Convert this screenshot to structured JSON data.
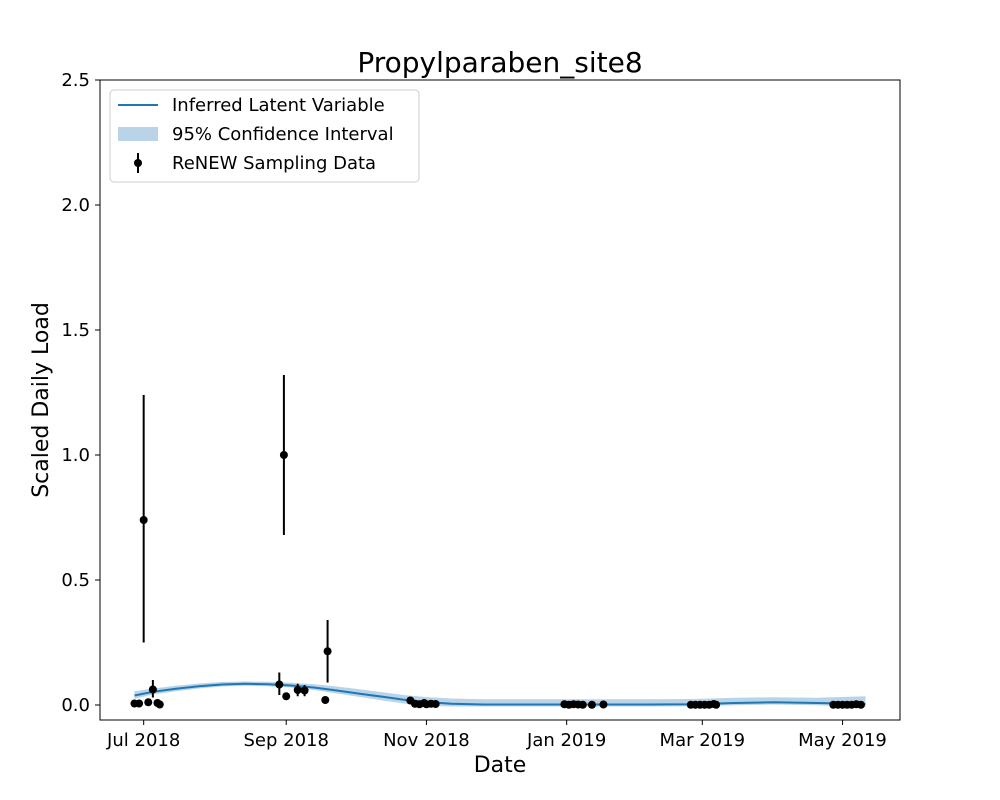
{
  "chart_data": {
    "type": "line",
    "title": "Propylparaben_site8",
    "xlabel": "Date",
    "ylabel": "Scaled Daily Load",
    "xlim": [
      "2018-06-12",
      "2019-05-26"
    ],
    "ylim": [
      -0.06,
      2.5
    ],
    "x_ticks": [
      {
        "date": "2018-07-01",
        "label": "Jul 2018"
      },
      {
        "date": "2018-09-01",
        "label": "Sep 2018"
      },
      {
        "date": "2018-11-01",
        "label": "Nov 2018"
      },
      {
        "date": "2019-01-01",
        "label": "Jan 2019"
      },
      {
        "date": "2019-03-01",
        "label": "Mar 2019"
      },
      {
        "date": "2019-05-01",
        "label": "May 2019"
      }
    ],
    "y_ticks": [
      {
        "value": 0.0,
        "label": "0.0"
      },
      {
        "value": 0.5,
        "label": "0.5"
      },
      {
        "value": 1.0,
        "label": "1.0"
      },
      {
        "value": 1.5,
        "label": "1.5"
      },
      {
        "value": 2.0,
        "label": "2.0"
      },
      {
        "value": 2.5,
        "label": "2.5"
      }
    ],
    "grid": false,
    "legend_position": "top-left",
    "colors": {
      "line": "#1f77b4",
      "band": "#b9d3e8",
      "points": "#000000"
    },
    "series": [
      {
        "name": "Inferred Latent Variable",
        "kind": "line",
        "points": [
          {
            "x": "2018-06-27",
            "y": 0.038
          },
          {
            "x": "2018-07-05",
            "y": 0.053
          },
          {
            "x": "2018-07-15",
            "y": 0.065
          },
          {
            "x": "2018-07-25",
            "y": 0.075
          },
          {
            "x": "2018-08-04",
            "y": 0.082
          },
          {
            "x": "2018-08-14",
            "y": 0.085
          },
          {
            "x": "2018-08-24",
            "y": 0.083
          },
          {
            "x": "2018-09-03",
            "y": 0.078
          },
          {
            "x": "2018-09-13",
            "y": 0.07
          },
          {
            "x": "2018-09-23",
            "y": 0.058
          },
          {
            "x": "2018-10-03",
            "y": 0.045
          },
          {
            "x": "2018-10-13",
            "y": 0.033
          },
          {
            "x": "2018-10-23",
            "y": 0.02
          },
          {
            "x": "2018-11-02",
            "y": 0.011
          },
          {
            "x": "2018-11-12",
            "y": 0.005
          },
          {
            "x": "2018-11-26",
            "y": 0.002
          },
          {
            "x": "2018-12-15",
            "y": 0.002
          },
          {
            "x": "2019-01-10",
            "y": 0.002
          },
          {
            "x": "2019-02-05",
            "y": 0.002
          },
          {
            "x": "2019-02-25",
            "y": 0.003
          },
          {
            "x": "2019-03-15",
            "y": 0.008
          },
          {
            "x": "2019-04-01",
            "y": 0.011
          },
          {
            "x": "2019-04-20",
            "y": 0.008
          },
          {
            "x": "2019-05-11",
            "y": 0.004
          }
        ]
      },
      {
        "name": "95% Confidence Interval",
        "kind": "band",
        "lower": [
          0.025,
          0.042,
          0.055,
          0.066,
          0.074,
          0.077,
          0.075,
          0.07,
          0.06,
          0.046,
          0.032,
          0.018,
          0.005,
          -0.003,
          -0.006,
          -0.006,
          -0.006,
          -0.006,
          -0.006,
          -0.005,
          -0.001,
          0.002,
          -0.001,
          -0.008
        ],
        "upper": [
          0.055,
          0.066,
          0.077,
          0.086,
          0.092,
          0.094,
          0.093,
          0.089,
          0.083,
          0.074,
          0.063,
          0.051,
          0.039,
          0.031,
          0.026,
          0.023,
          0.023,
          0.023,
          0.023,
          0.024,
          0.029,
          0.031,
          0.029,
          0.035
        ]
      },
      {
        "name": "ReNEW Sampling Data",
        "kind": "errorbar",
        "points": [
          {
            "x": "2018-06-27",
            "y": 0.006
          },
          {
            "x": "2018-06-29",
            "y": 0.006
          },
          {
            "x": "2018-07-01",
            "y": 0.74,
            "err": [
              0.25,
              1.24
            ]
          },
          {
            "x": "2018-07-03",
            "y": 0.011
          },
          {
            "x": "2018-07-05",
            "y": 0.062,
            "err": [
              0.03,
              0.1
            ]
          },
          {
            "x": "2018-07-07",
            "y": 0.008
          },
          {
            "x": "2018-07-08",
            "y": 0.002
          },
          {
            "x": "2018-08-29",
            "y": 0.082,
            "err": [
              0.04,
              0.13
            ]
          },
          {
            "x": "2018-08-31",
            "y": 1.0,
            "err": [
              0.68,
              1.32
            ]
          },
          {
            "x": "2018-09-01",
            "y": 0.035
          },
          {
            "x": "2018-09-06",
            "y": 0.06,
            "err": [
              0.035,
              0.085
            ]
          },
          {
            "x": "2018-09-09",
            "y": 0.058,
            "err": [
              0.035,
              0.08
            ]
          },
          {
            "x": "2018-09-18",
            "y": 0.02
          },
          {
            "x": "2018-09-19",
            "y": 0.215,
            "err": [
              0.09,
              0.34
            ]
          },
          {
            "x": "2018-10-25",
            "y": 0.018
          },
          {
            "x": "2018-10-27",
            "y": 0.005
          },
          {
            "x": "2018-10-29",
            "y": 0.003
          },
          {
            "x": "2018-10-31",
            "y": 0.008
          },
          {
            "x": "2018-11-01",
            "y": 0.003
          },
          {
            "x": "2018-11-03",
            "y": 0.005
          },
          {
            "x": "2018-11-05",
            "y": 0.004
          },
          {
            "x": "2018-12-31",
            "y": 0.003
          },
          {
            "x": "2019-01-02",
            "y": 0.001
          },
          {
            "x": "2019-01-04",
            "y": 0.003
          },
          {
            "x": "2019-01-06",
            "y": 0.002
          },
          {
            "x": "2019-01-08",
            "y": 0.001
          },
          {
            "x": "2019-01-12",
            "y": 0.001
          },
          {
            "x": "2019-01-17",
            "y": 0.002
          },
          {
            "x": "2019-02-24",
            "y": 0.001
          },
          {
            "x": "2019-02-26",
            "y": 0.001
          },
          {
            "x": "2019-02-28",
            "y": 0.001
          },
          {
            "x": "2019-03-02",
            "y": 0.001
          },
          {
            "x": "2019-03-04",
            "y": 0.001
          },
          {
            "x": "2019-03-06",
            "y": 0.004
          },
          {
            "x": "2019-03-07",
            "y": 0.001
          },
          {
            "x": "2019-04-27",
            "y": 0.001
          },
          {
            "x": "2019-04-29",
            "y": 0.001
          },
          {
            "x": "2019-05-01",
            "y": 0.001
          },
          {
            "x": "2019-05-03",
            "y": 0.001
          },
          {
            "x": "2019-05-05",
            "y": 0.001
          },
          {
            "x": "2019-05-07",
            "y": 0.003
          },
          {
            "x": "2019-05-09",
            "y": 0.001
          }
        ]
      }
    ],
    "legend": {
      "items": [
        {
          "label": "Inferred Latent Variable",
          "marker": "line"
        },
        {
          "label": "95% Confidence Interval",
          "marker": "band"
        },
        {
          "label": "ReNEW Sampling Data",
          "marker": "errorbar"
        }
      ]
    }
  }
}
